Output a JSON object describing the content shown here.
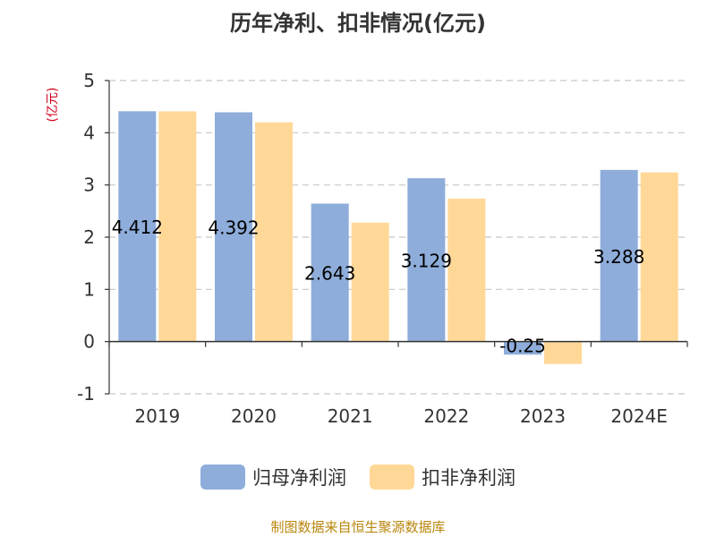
{
  "chart_data": {
    "type": "bar",
    "title": "历年净利、扣非情况(亿元)",
    "ylabel": "(亿元)",
    "ylim": [
      -1,
      5
    ],
    "yticks": [
      -1,
      0,
      1,
      2,
      3,
      4,
      5
    ],
    "grid": true,
    "legend_position": "bottom",
    "categories": [
      "2019",
      "2020",
      "2021",
      "2022",
      "2023",
      "2024E"
    ],
    "series": [
      {
        "name": "归母净利润",
        "color": "#8eadda",
        "values": [
          4.412,
          4.392,
          2.643,
          3.129,
          -0.25,
          3.288
        ],
        "labels": [
          "4.412",
          "4.392",
          "2.643",
          "3.129",
          "-0.25",
          "3.288"
        ]
      },
      {
        "name": "扣非净利润",
        "color": "#ffd898",
        "values": [
          4.41,
          4.2,
          2.28,
          2.74,
          -0.43,
          3.24
        ]
      }
    ],
    "source": "制图数据来自恒生聚源数据库"
  }
}
